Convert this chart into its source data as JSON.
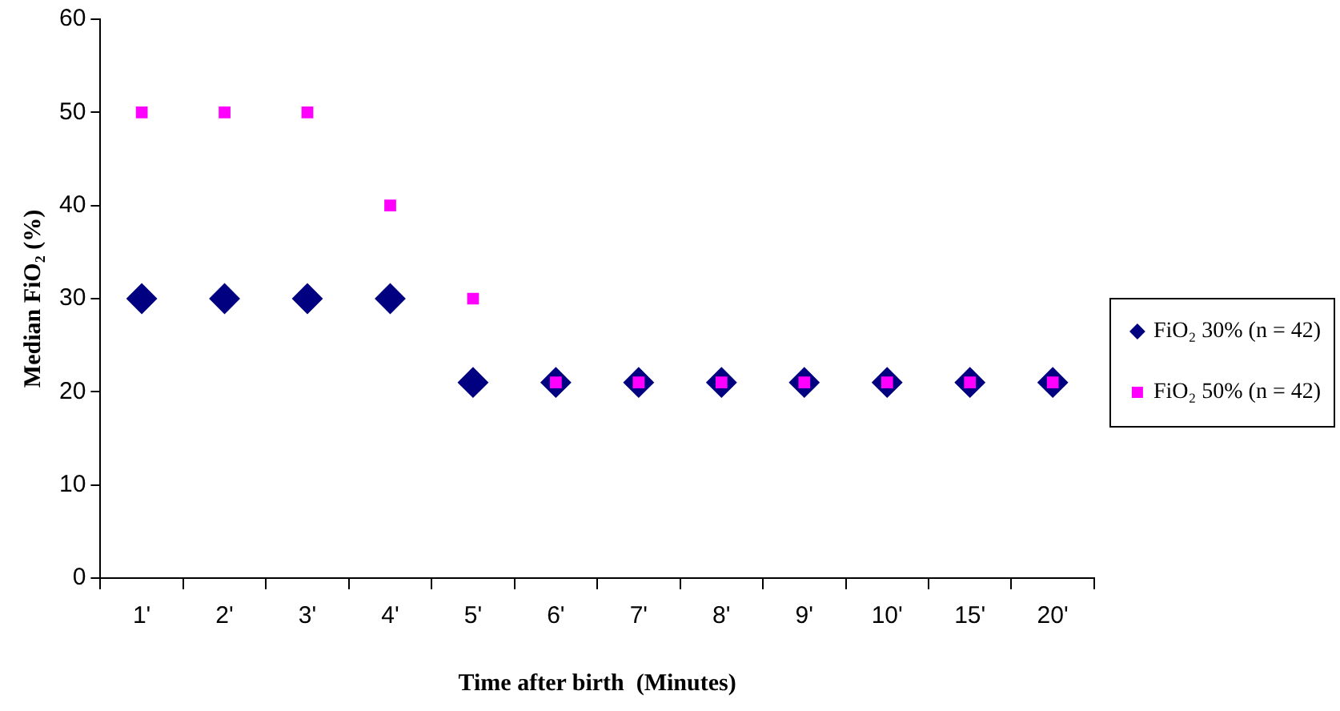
{
  "chart_data": {
    "type": "scatter",
    "xlabel": "Time after birth  (Minutes)",
    "ylabel": "Median FiO₂ (%)",
    "categories": [
      "1'",
      "2'",
      "3'",
      "4'",
      "5'",
      "6'",
      "7'",
      "8'",
      "9'",
      "10'",
      "15'",
      "20'"
    ],
    "series": [
      {
        "name": "FiO₂ 30% (n = 42)",
        "color": "#000080",
        "marker": "diamond",
        "values": [
          30,
          30,
          30,
          30,
          21,
          21,
          21,
          21,
          21,
          21,
          21,
          21
        ]
      },
      {
        "name": "FiO₂ 50% (n = 42)",
        "color": "#ff00ff",
        "marker": "square",
        "values": [
          50,
          50,
          50,
          40,
          30,
          21,
          21,
          21,
          21,
          21,
          21,
          21
        ]
      }
    ],
    "ylim": [
      0,
      60
    ],
    "yticks": [
      0,
      10,
      20,
      30,
      40,
      50,
      60
    ],
    "grid": false,
    "legend": "right"
  }
}
